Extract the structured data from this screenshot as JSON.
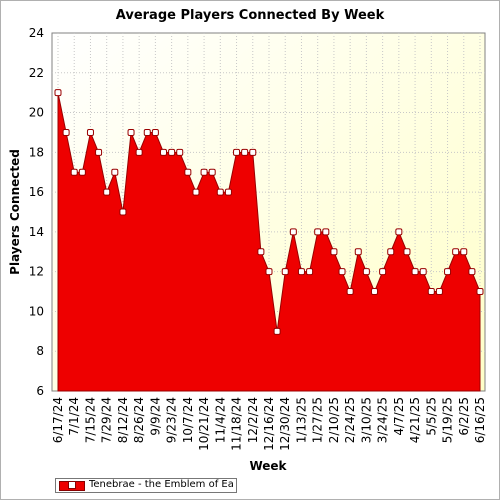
{
  "chart_data": {
    "type": "area",
    "title": "Average Players Connected By Week",
    "xlabel": "Week",
    "ylabel": "Players Connected",
    "ylim": [
      6,
      24
    ],
    "y_ticks": [
      6,
      8,
      10,
      12,
      14,
      16,
      18,
      20,
      22,
      24
    ],
    "x_tick_labels": [
      "6/17/24",
      "7/1/24",
      "7/15/24",
      "7/29/24",
      "8/12/24",
      "8/26/24",
      "9/9/24",
      "9/23/24",
      "10/7/24",
      "10/21/24",
      "11/4/24",
      "11/18/24",
      "12/2/24",
      "12/16/24",
      "12/30/24",
      "1/13/25",
      "1/27/25",
      "2/10/25",
      "2/24/25",
      "3/10/25",
      "3/24/25",
      "4/7/25",
      "4/21/25",
      "5/5/25",
      "5/19/25",
      "6/2/25",
      "6/16/25"
    ],
    "grid": true,
    "legend_position": "bottom-left",
    "series": [
      {
        "name": "Tenebrae - the Emblem of Ea",
        "color": "#ee0000",
        "values": [
          21,
          19,
          17,
          17,
          19,
          18,
          16,
          17,
          15,
          19,
          18,
          19,
          19,
          18,
          18,
          18,
          17,
          16,
          17,
          17,
          16,
          16,
          18,
          18,
          18,
          13,
          12,
          9,
          12,
          14,
          12,
          12,
          14,
          14,
          13,
          12,
          11,
          13,
          12,
          11,
          12,
          13,
          14,
          13,
          12,
          12,
          11,
          11,
          12,
          13,
          13,
          12,
          11
        ]
      }
    ]
  }
}
